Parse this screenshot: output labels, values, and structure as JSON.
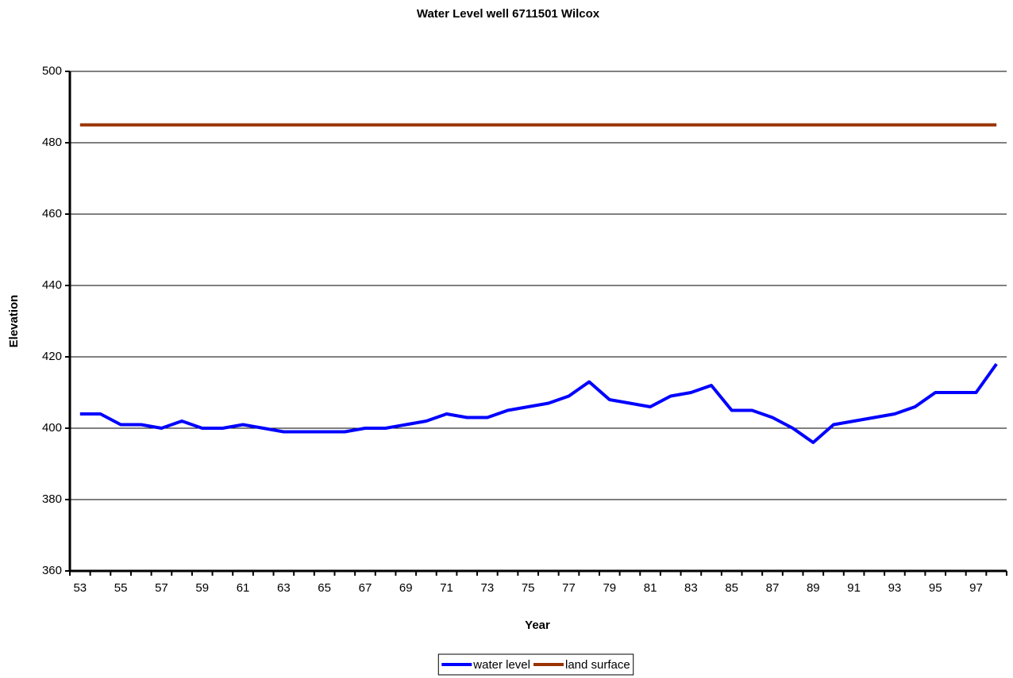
{
  "chart_data": {
    "type": "line",
    "title": "Water Level well 6711501 Wilcox",
    "x_label": "Year",
    "y_label": "Elevation",
    "categories": [
      "53",
      null,
      "55",
      null,
      "57",
      null,
      "59",
      null,
      "61",
      null,
      "63",
      null,
      "65",
      null,
      "67",
      null,
      "69",
      null,
      "71",
      null,
      "73",
      null,
      "75",
      null,
      "77",
      null,
      "79",
      null,
      "81",
      null,
      "83",
      null,
      "85",
      null,
      "87",
      null,
      "89",
      null,
      "91",
      null,
      "93",
      null,
      "95",
      null,
      "97",
      null
    ],
    "series": [
      {
        "name": "water level",
        "color": "#0000ff",
        "values": [
          404,
          404,
          401,
          401,
          400,
          402,
          400,
          400,
          401,
          400,
          399,
          399,
          399,
          399,
          400,
          400,
          401,
          402,
          404,
          403,
          403,
          405,
          406,
          407,
          409,
          413,
          408,
          407,
          406,
          409,
          410,
          412,
          405,
          405,
          403,
          400,
          396,
          401,
          402,
          403,
          404,
          406,
          410,
          410,
          410,
          418
        ]
      },
      {
        "name": "land surface",
        "color": "#993300",
        "values": [
          485,
          485,
          485,
          485,
          485,
          485,
          485,
          485,
          485,
          485,
          485,
          485,
          485,
          485,
          485,
          485,
          485,
          485,
          485,
          485,
          485,
          485,
          485,
          485,
          485,
          485,
          485,
          485,
          485,
          485,
          485,
          485,
          485,
          485,
          485,
          485,
          485,
          485,
          485,
          485,
          485,
          485,
          485,
          485,
          485,
          485
        ]
      }
    ],
    "ylim": [
      360,
      500
    ],
    "yticks": [
      360,
      380,
      400,
      420,
      440,
      460,
      480,
      500
    ],
    "grid": true,
    "legend": "bottom"
  }
}
